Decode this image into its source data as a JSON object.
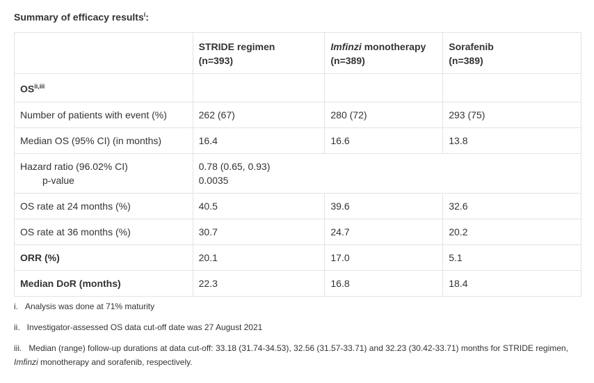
{
  "title": {
    "text": "Summary of efficacy results",
    "sup": "i",
    "suffix": ":"
  },
  "table": {
    "header": {
      "col1": "",
      "col2_line1": "STRIDE regimen",
      "col2_line2": "(n=393)",
      "col3_italic": "Imfinzi",
      "col3_rest": " monotherapy",
      "col3_line2": "(n=389)",
      "col4_line1": "Sorafenib",
      "col4_line2": "(n=389)"
    },
    "os_row": {
      "label": "OS",
      "sup": "ii,iii"
    },
    "rows": [
      {
        "label": "Number of patients with event (%)",
        "v1": "262 (67)",
        "v2": "280 (72)",
        "v3": "293 (75)"
      },
      {
        "label": "Median OS (95% CI) (in months)",
        "v1": "16.4",
        "v2": "16.6",
        "v3": "13.8"
      }
    ],
    "hazard": {
      "label1": "Hazard ratio (96.02% CI)",
      "label2": "p-value",
      "value1": "0.78 (0.65, 0.93)",
      "value2": "0.0035"
    },
    "rows2": [
      {
        "label": "OS rate at 24 months (%)",
        "v1": "40.5",
        "v2": "39.6",
        "v3": "32.6"
      },
      {
        "label": "OS rate at 36 months (%)",
        "v1": "30.7",
        "v2": "24.7",
        "v3": "20.2"
      }
    ],
    "orr": {
      "label": "ORR (%)",
      "v1": "20.1",
      "v2": "17.0",
      "v3": "5.1"
    },
    "dor": {
      "label": "Median DoR (months)",
      "v1": "22.3",
      "v2": "16.8",
      "v3": "18.4"
    }
  },
  "notes": {
    "n1_num": "i.",
    "n1_text": "Analysis was done at 71% maturity",
    "n2_num": "ii.",
    "n2_text": "Investigator-assessed OS data cut-off date was 27 August 2021",
    "n3_num": "iii.",
    "n3_text_a": "Median (range) follow-up durations at data cut-off: 33.18 (31.74-34.53), 32.56 (31.57-33.71) and 32.23 (30.42-33.71) months for STRIDE regimen, ",
    "n3_italic": "Imfinzi",
    "n3_text_b": " monotherapy and sorafenib, respectively."
  }
}
